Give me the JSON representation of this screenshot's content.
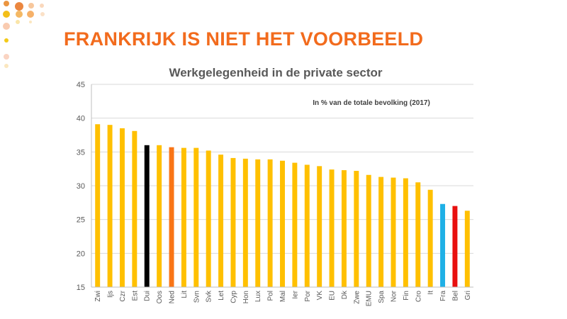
{
  "slide": {
    "title": "FRANKRIJK  IS NIET HET VOORBEELD"
  },
  "chart_data": {
    "type": "bar",
    "title": "Werkgelegenheid in de private sector",
    "annotation": "In % van de totale bevolking (2017)",
    "xlabel": "",
    "ylabel": "",
    "ylim": [
      15,
      45
    ],
    "yticks": [
      15,
      20,
      25,
      30,
      35,
      40,
      45
    ],
    "grid": true,
    "legend": "none",
    "categories": [
      "Zwi",
      "Ijs",
      "Czr",
      "Est",
      "Dui",
      "Oos",
      "Ned",
      "Lit",
      "Svn",
      "Svk",
      "Let",
      "Cyp",
      "Hon",
      "Lux",
      "Pol",
      "Mal",
      "Ier",
      "Por",
      "VK",
      "EU",
      "Dk",
      "Zwe",
      "EMU",
      "Spa",
      "Nor",
      "Fin",
      "Cro",
      "It",
      "Fra",
      "Bel",
      "Gri"
    ],
    "values": [
      39.1,
      39.0,
      38.5,
      38.1,
      36.0,
      36.0,
      35.7,
      35.6,
      35.6,
      35.2,
      34.6,
      34.1,
      34.0,
      33.9,
      33.9,
      33.7,
      33.4,
      33.1,
      32.9,
      32.4,
      32.3,
      32.2,
      31.6,
      31.3,
      31.2,
      31.1,
      30.5,
      29.4,
      27.3,
      27.0,
      26.3
    ],
    "colors": {
      "default": "#ffc000",
      "Dui": "#000000",
      "Ned": "#f97516",
      "Fra": "#1fb0e6",
      "Bel": "#e8100f"
    }
  }
}
